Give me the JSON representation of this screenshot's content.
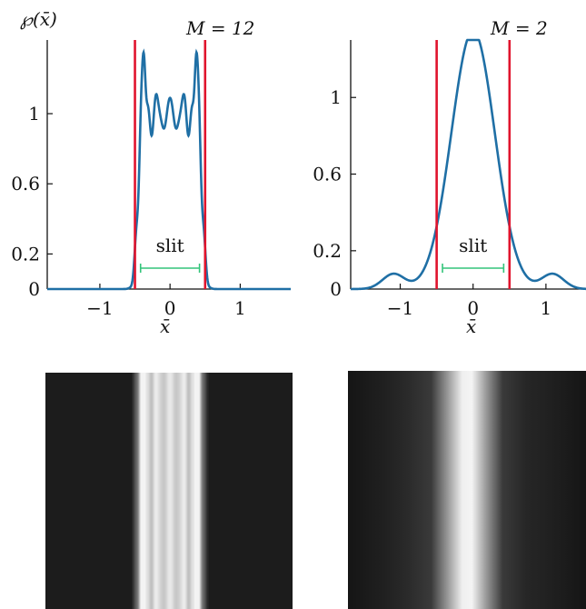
{
  "chart_data": [
    {
      "type": "line",
      "title": "M = 12",
      "ylabel": "℘(x̄)",
      "xlabel": "x̄",
      "xlim": [
        -1.75,
        1.72
      ],
      "ylim": [
        0,
        1.42
      ],
      "xticks": [
        -1,
        0,
        1
      ],
      "xtick_labels": [
        "−1",
        "0",
        "1"
      ],
      "yticks": [
        0,
        0.2,
        0.6,
        1
      ],
      "ytick_labels": [
        "0",
        "0.2",
        "0.6",
        "1"
      ],
      "slit_edges": [
        -0.5,
        0.5
      ],
      "slit_label": "slit",
      "series": [
        {
          "color": "#1f6fa5",
          "M": 12
        }
      ],
      "colors": {
        "line": "#1f6fa5",
        "edge": "#e0142d",
        "slit": "#33c47a"
      }
    },
    {
      "type": "line",
      "title": "M = 2",
      "ylabel": "",
      "xlabel": "x̄",
      "xlim": [
        -1.68,
        1.55
      ],
      "ylim": [
        0,
        1.3
      ],
      "xticks": [
        -1,
        0,
        1
      ],
      "xtick_labels": [
        "−1",
        "0",
        "1"
      ],
      "yticks": [
        0,
        0.2,
        0.6,
        1
      ],
      "ytick_labels": [
        "0",
        "0.2",
        "0.6",
        "1"
      ],
      "slit_edges": [
        -0.5,
        0.5
      ],
      "slit_label": "slit",
      "series": [
        {
          "color": "#1f6fa5",
          "M": 2
        }
      ],
      "colors": {
        "line": "#1f6fa5",
        "edge": "#e0142d",
        "slit": "#33c47a"
      }
    }
  ],
  "images": [
    {
      "name": "intensity-pattern-m12",
      "background": "#1c1c1c",
      "stripes": "fine"
    },
    {
      "name": "intensity-pattern-m2",
      "background": "#1c1c1c",
      "stripes": "single-band"
    }
  ]
}
